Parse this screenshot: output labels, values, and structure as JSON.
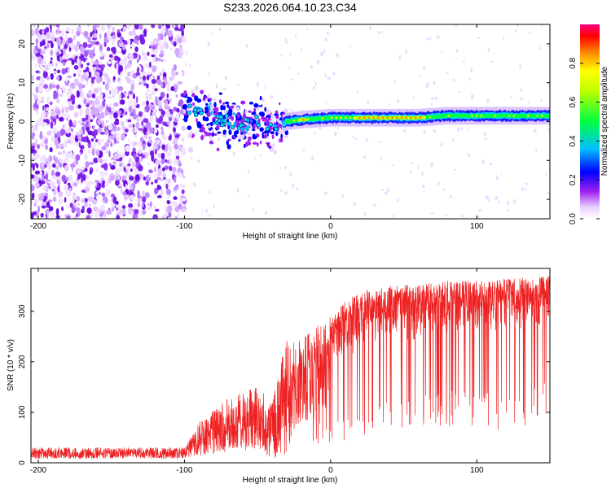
{
  "figure": {
    "title": "S233.2026.064.10.23.C34"
  },
  "chart_data": [
    {
      "type": "heatmap",
      "title": "S233.2026.064.10.23.C34",
      "xlabel": "Height of straight line (km)",
      "ylabel": "Frequency (Hz)",
      "xlim": [
        -205,
        150
      ],
      "ylim": [
        -25,
        25
      ],
      "x_ticks": [
        -200,
        -100,
        0,
        100
      ],
      "x_tick_labels": [
        "-200",
        "-100",
        "0",
        "100"
      ],
      "y_ticks": [
        -20,
        -10,
        0,
        10,
        20
      ],
      "y_tick_labels": [
        "-20",
        "-10",
        "0",
        "10",
        "20"
      ],
      "colorbar": {
        "label": "Normalized spectral amplitude",
        "range": [
          0,
          1
        ],
        "ticks": [
          0,
          0.2,
          0.4,
          0.6,
          0.8
        ],
        "tick_labels": [
          "0.0",
          "0.2",
          "0.4",
          "0.6",
          "0.8"
        ],
        "colors": [
          "#ffffff",
          "#a020f0",
          "#0000ff",
          "#00c0ff",
          "#00ff00",
          "#ffff00",
          "#ff8000",
          "#ff0000",
          "#ff0080"
        ]
      },
      "noise_region": {
        "x_range": [
          -205,
          -100
        ],
        "amplitude": "0.0-0.15"
      },
      "ridge_x": [
        -100,
        -80,
        -60,
        -50,
        -40,
        -30,
        -20,
        0,
        20,
        40,
        60,
        80,
        100,
        120,
        150
      ],
      "ridge_freq": [
        3,
        1,
        -1,
        0,
        -2,
        0,
        0.5,
        1,
        1,
        1,
        1,
        1.5,
        1.5,
        1.5,
        1.5
      ],
      "ridge_amplitude": [
        0.25,
        0.3,
        0.3,
        0.35,
        0.4,
        0.5,
        0.9,
        0.5,
        0.9,
        0.9,
        0.9,
        0.6,
        0.8,
        0.6,
        0.6
      ]
    },
    {
      "type": "line",
      "xlabel": "Height of straight line (km)",
      "ylabel": "SNR (10 * v/v)",
      "xlim": [
        -205,
        150
      ],
      "ylim": [
        0,
        385
      ],
      "x_ticks": [
        -200,
        -100,
        0,
        100
      ],
      "x_tick_labels": [
        "-200",
        "-100",
        "0",
        "100"
      ],
      "y_ticks": [
        0,
        100,
        200,
        300
      ],
      "y_tick_labels": [
        "0",
        "100",
        "200",
        "300"
      ],
      "series": [
        {
          "name": "SNR",
          "color": "#ee2222",
          "envelope_x": [
            -205,
            -100,
            -90,
            -70,
            -50,
            -40,
            -30,
            -25,
            -20,
            -10,
            0,
            10,
            20,
            40,
            60,
            80,
            100,
            120,
            150
          ],
          "envelope_low": [
            8,
            8,
            15,
            20,
            25,
            10,
            10,
            60,
            80,
            90,
            100,
            110,
            120,
            150,
            150,
            160,
            160,
            160,
            180
          ],
          "envelope_high": [
            30,
            30,
            80,
            130,
            150,
            120,
            250,
            240,
            245,
            270,
            290,
            320,
            340,
            350,
            355,
            360,
            360,
            365,
            370
          ]
        }
      ]
    }
  ]
}
